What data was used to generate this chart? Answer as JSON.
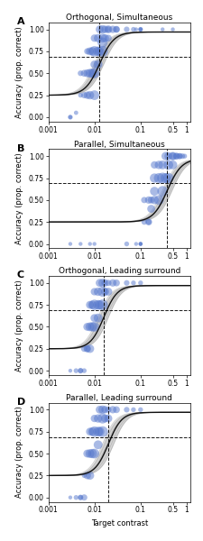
{
  "panels": [
    {
      "label": "A",
      "title": "Orthogonal, Simultaneous",
      "threshold": 0.013,
      "slope": 2.8,
      "chance": 0.25,
      "asymptote": 0.97,
      "ci_threshold_lo": 0.01,
      "ci_threshold_hi": 0.016,
      "scatter_x": [
        0.003,
        0.003,
        0.004,
        0.005,
        0.005,
        0.006,
        0.006,
        0.007,
        0.007,
        0.007,
        0.008,
        0.008,
        0.008,
        0.009,
        0.009,
        0.01,
        0.01,
        0.01,
        0.01,
        0.01,
        0.012,
        0.012,
        0.012,
        0.013,
        0.013,
        0.015,
        0.015,
        0.015,
        0.015,
        0.017,
        0.017,
        0.02,
        0.02,
        0.02,
        0.025,
        0.03,
        0.03,
        0.05,
        0.07,
        0.08,
        0.1,
        0.1,
        0.1,
        0.3,
        0.5
      ],
      "scatter_y": [
        0.0,
        0.0,
        0.05,
        0.5,
        0.25,
        0.25,
        0.5,
        0.25,
        0.5,
        0.75,
        0.25,
        0.5,
        0.75,
        0.5,
        0.75,
        0.25,
        0.5,
        0.6,
        0.75,
        0.9,
        0.6,
        0.75,
        0.9,
        0.75,
        1.0,
        0.75,
        0.85,
        0.9,
        1.0,
        0.9,
        1.0,
        0.9,
        1.0,
        1.0,
        1.0,
        1.0,
        1.0,
        1.0,
        1.0,
        1.0,
        1.0,
        1.0,
        1.0,
        1.0,
        1.0
      ],
      "scatter_size": [
        15,
        10,
        12,
        20,
        15,
        25,
        30,
        35,
        40,
        25,
        45,
        50,
        40,
        55,
        45,
        60,
        65,
        40,
        70,
        35,
        50,
        60,
        45,
        55,
        40,
        75,
        65,
        50,
        45,
        40,
        35,
        30,
        40,
        25,
        35,
        30,
        25,
        20,
        15,
        10,
        15,
        10,
        10,
        10,
        10
      ]
    },
    {
      "label": "B",
      "title": "Parallel, Simultaneous",
      "threshold": 0.38,
      "slope": 2.8,
      "chance": 0.25,
      "asymptote": 0.97,
      "ci_threshold_lo": 0.3,
      "ci_threshold_hi": 0.48,
      "scatter_x": [
        0.003,
        0.005,
        0.008,
        0.01,
        0.05,
        0.08,
        0.1,
        0.1,
        0.1,
        0.12,
        0.12,
        0.15,
        0.15,
        0.15,
        0.17,
        0.17,
        0.2,
        0.2,
        0.2,
        0.2,
        0.25,
        0.25,
        0.25,
        0.3,
        0.3,
        0.3,
        0.35,
        0.35,
        0.4,
        0.4,
        0.4,
        0.5,
        0.5,
        0.5,
        0.6,
        0.6,
        0.7,
        0.7,
        0.8,
        0.9
      ],
      "scatter_y": [
        0.0,
        0.0,
        0.0,
        0.0,
        0.0,
        0.0,
        0.0,
        0.0,
        0.0,
        0.25,
        0.5,
        0.25,
        0.5,
        0.25,
        0.4,
        0.5,
        0.5,
        0.6,
        0.75,
        0.9,
        0.5,
        0.75,
        0.9,
        0.6,
        0.75,
        0.9,
        0.75,
        1.0,
        0.75,
        0.9,
        1.0,
        0.9,
        1.0,
        1.0,
        1.0,
        1.0,
        1.0,
        1.0,
        1.0,
        1.0
      ],
      "scatter_size": [
        10,
        10,
        10,
        10,
        15,
        10,
        10,
        10,
        10,
        20,
        25,
        30,
        35,
        20,
        40,
        30,
        45,
        50,
        55,
        35,
        60,
        65,
        45,
        70,
        75,
        50,
        65,
        45,
        70,
        60,
        40,
        50,
        45,
        35,
        30,
        25,
        25,
        20,
        20,
        15
      ]
    },
    {
      "label": "C",
      "title": "Orthogonal, Leading surround",
      "threshold": 0.016,
      "slope": 3.0,
      "chance": 0.25,
      "asymptote": 0.97,
      "ci_threshold_lo": 0.012,
      "ci_threshold_hi": 0.02,
      "scatter_x": [
        0.003,
        0.004,
        0.005,
        0.005,
        0.006,
        0.006,
        0.007,
        0.007,
        0.007,
        0.008,
        0.008,
        0.008,
        0.009,
        0.009,
        0.01,
        0.01,
        0.01,
        0.01,
        0.012,
        0.012,
        0.012,
        0.013,
        0.013,
        0.015,
        0.015,
        0.015,
        0.017,
        0.017,
        0.02,
        0.02,
        0.025,
        0.03,
        0.05,
        0.07,
        0.1
      ],
      "scatter_y": [
        0.0,
        0.0,
        0.0,
        0.0,
        0.25,
        0.0,
        0.25,
        0.5,
        0.25,
        0.25,
        0.5,
        0.75,
        0.5,
        0.75,
        0.5,
        0.6,
        0.75,
        0.9,
        0.6,
        0.75,
        0.9,
        0.75,
        1.0,
        0.75,
        0.9,
        1.0,
        0.9,
        1.0,
        0.9,
        1.0,
        1.0,
        1.0,
        1.0,
        1.0,
        1.0
      ],
      "scatter_size": [
        10,
        15,
        20,
        15,
        25,
        15,
        35,
        40,
        25,
        45,
        50,
        40,
        55,
        45,
        60,
        40,
        70,
        35,
        50,
        60,
        45,
        55,
        40,
        75,
        65,
        45,
        40,
        35,
        40,
        25,
        35,
        30,
        20,
        15,
        15
      ]
    },
    {
      "label": "D",
      "title": "Parallel, Leading surround",
      "threshold": 0.02,
      "slope": 3.0,
      "chance": 0.25,
      "asymptote": 0.97,
      "ci_threshold_lo": 0.015,
      "ci_threshold_hi": 0.026,
      "scatter_x": [
        0.003,
        0.004,
        0.005,
        0.005,
        0.006,
        0.006,
        0.007,
        0.007,
        0.008,
        0.008,
        0.008,
        0.009,
        0.009,
        0.01,
        0.01,
        0.01,
        0.012,
        0.012,
        0.012,
        0.013,
        0.013,
        0.015,
        0.015,
        0.015,
        0.017,
        0.017,
        0.02,
        0.02,
        0.025,
        0.03,
        0.05,
        0.07,
        0.1
      ],
      "scatter_y": [
        0.0,
        0.0,
        0.0,
        0.0,
        0.0,
        0.25,
        0.25,
        0.5,
        0.25,
        0.5,
        0.75,
        0.5,
        0.75,
        0.5,
        0.75,
        0.9,
        0.6,
        0.75,
        0.9,
        0.75,
        1.0,
        0.75,
        0.9,
        1.0,
        0.9,
        1.0,
        0.9,
        1.0,
        1.0,
        1.0,
        1.0,
        1.0,
        1.0
      ],
      "scatter_size": [
        10,
        15,
        20,
        15,
        25,
        15,
        35,
        40,
        45,
        50,
        40,
        55,
        45,
        60,
        70,
        35,
        50,
        60,
        45,
        55,
        40,
        75,
        65,
        45,
        40,
        35,
        40,
        25,
        35,
        30,
        20,
        15,
        15
      ]
    }
  ],
  "xlim": [
    0.001,
    1.2
  ],
  "ylim": [
    -0.05,
    1.08
  ],
  "yticks": [
    0.0,
    0.25,
    0.5,
    0.75,
    1.0
  ],
  "ytick_labels": [
    "0.00",
    "0.25",
    "0.50",
    "0.75",
    "1.00"
  ],
  "xticks": [
    0.001,
    0.01,
    0.1,
    0.5,
    1
  ],
  "xtick_labels": [
    "0.001",
    "0.01",
    "0.1",
    "0.5",
    "1"
  ],
  "hline_y": 0.69,
  "scatter_color": "#5577CC",
  "scatter_alpha": 0.5,
  "curve_color": "#111111",
  "ci_color": "#999999",
  "ci_alpha": 0.4,
  "background_color": "#ffffff",
  "ylabel": "Accuracy (prop. correct)",
  "xlabel": "Target contrast",
  "title_fontsize": 6.5,
  "label_fontsize": 6,
  "tick_fontsize": 5.5
}
